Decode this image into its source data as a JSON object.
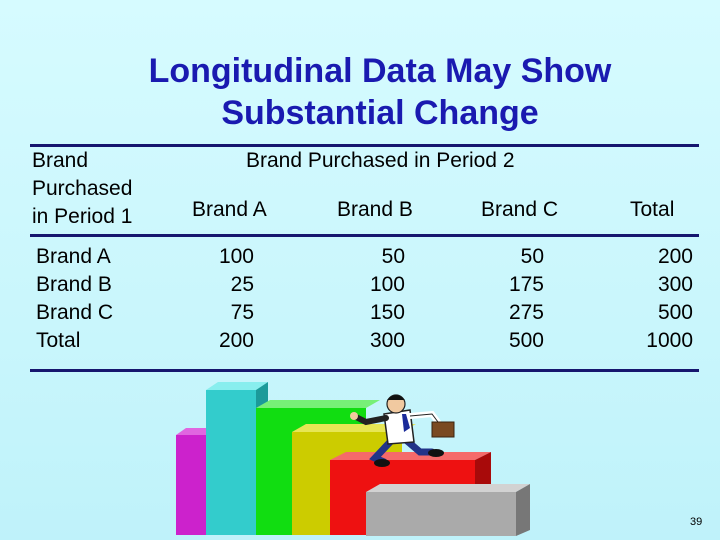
{
  "slide": {
    "title_line1": "Longitudinal Data May Show",
    "title_line2": "Substantial Change",
    "page_number": "39"
  },
  "table": {
    "row_header": [
      "Brand",
      "Purchased",
      "in Period 1"
    ],
    "column_group_header": "Brand Purchased in Period 2",
    "columns": [
      "Brand A",
      "Brand B",
      "Brand C",
      "Total"
    ],
    "row_labels": [
      "Brand A",
      "Brand B",
      "Brand C",
      "Total"
    ],
    "cells": [
      [
        "100",
        "50",
        "50",
        "200"
      ],
      [
        "25",
        "100",
        "175",
        "300"
      ],
      [
        "75",
        "150",
        "275",
        "500"
      ],
      [
        "200",
        "300",
        "500",
        "1000"
      ]
    ]
  },
  "illustration": {
    "description_icon": "man-climbing-stairs-icon",
    "step_colors": [
      "#cc22cc",
      "#33cccc",
      "#11dd11",
      "#cccc00",
      "#ee1111",
      "#aaaaaa"
    ]
  }
}
